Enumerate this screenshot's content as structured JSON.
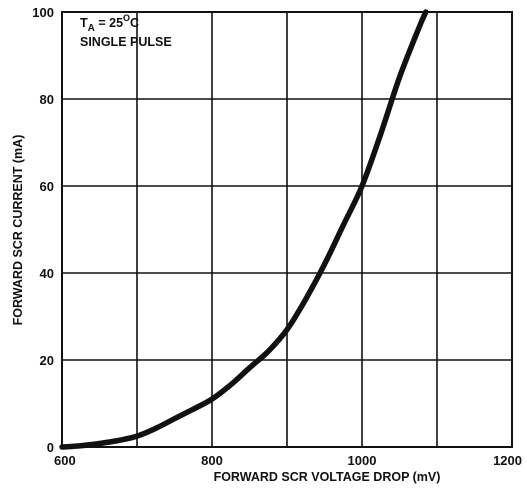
{
  "chart_data": {
    "type": "line",
    "xlabel": "FORWARD SCR VOLTAGE DROP (mV)",
    "ylabel": "FORWARD SCR CURRENT (mA)",
    "xlim": [
      600,
      1200
    ],
    "ylim": [
      0,
      100
    ],
    "xticks": [
      "600",
      "800",
      "1000",
      "1200"
    ],
    "yticks": [
      "0",
      "20",
      "40",
      "60",
      "80",
      "100"
    ],
    "x_minor_grid": [
      700,
      900,
      1100
    ],
    "grid": true,
    "annotation": {
      "line1_main": "T",
      "line1_sub": "A",
      "line1_rest": " = 25",
      "line1_sup": "O",
      "line1_unit": "C",
      "line2": "SINGLE PULSE"
    },
    "series": [
      {
        "x": [
          600,
          625,
          650,
          675,
          700,
          725,
          750,
          775,
          800,
          825,
          850,
          875,
          900,
          925,
          950,
          975,
          1000,
          1025,
          1050,
          1075,
          1085
        ],
        "y": [
          0,
          0.3,
          0.8,
          1.5,
          2.5,
          4.3,
          6.5,
          8.7,
          11,
          14.3,
          18.2,
          22,
          27,
          34,
          42,
          51,
          60,
          72,
          85,
          96,
          100
        ]
      }
    ]
  }
}
